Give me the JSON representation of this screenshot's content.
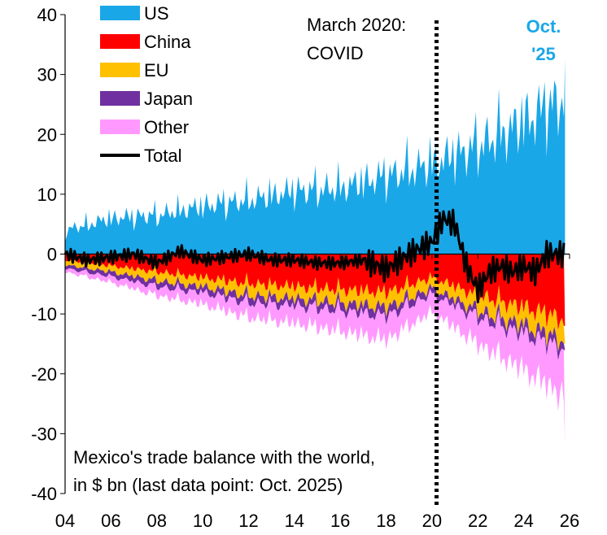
{
  "chart_data": {
    "type": "area",
    "caption_lines": [
      "Mexico's trade balance with the world,",
      "in $ bn (last data point: Oct. 2025)"
    ],
    "x_ticks": [
      "04",
      "06",
      "08",
      "10",
      "12",
      "14",
      "16",
      "18",
      "20",
      "22",
      "24",
      "26"
    ],
    "x_range": [
      2004,
      2026
    ],
    "y_ticks": [
      "-40",
      "-30",
      "-20",
      "-10",
      "0",
      "10",
      "20",
      "30",
      "40"
    ],
    "ylim": [
      -40,
      40
    ],
    "grid": false,
    "legend_position": "top-left",
    "series": [
      {
        "name": "US",
        "color": "#1aa7e8",
        "kind": "stacked-area",
        "x": [
          2004,
          2006,
          2008,
          2010,
          2012,
          2014,
          2016,
          2018,
          2020,
          2022,
          2024,
          2025.8
        ],
        "values": [
          4,
          6,
          6.5,
          8,
          9,
          10.5,
          11,
          13,
          15,
          18,
          22,
          26
        ]
      },
      {
        "name": "China",
        "color": "#ff0000",
        "kind": "stacked-area",
        "x": [
          2004,
          2006,
          2008,
          2010,
          2012,
          2014,
          2016,
          2018,
          2020,
          2022,
          2024,
          2025.8
        ],
        "values": [
          -1,
          -2,
          -3,
          -4,
          -5,
          -5.5,
          -6,
          -6.5,
          -4,
          -7,
          -9,
          -11
        ]
      },
      {
        "name": "EU",
        "color": "#ffc000",
        "kind": "stacked-area",
        "x": [
          2004,
          2006,
          2008,
          2010,
          2012,
          2014,
          2016,
          2018,
          2020,
          2022,
          2024,
          2025.8
        ],
        "values": [
          -0.8,
          -1,
          -1.5,
          -1.5,
          -2,
          -2,
          -2.2,
          -2.5,
          -1.8,
          -2.5,
          -3,
          -3.5
        ]
      },
      {
        "name": "Japan",
        "color": "#7030a0",
        "kind": "stacked-area",
        "x": [
          2004,
          2006,
          2008,
          2010,
          2012,
          2014,
          2016,
          2018,
          2020,
          2022,
          2024,
          2025.8
        ],
        "values": [
          -0.6,
          -0.8,
          -1,
          -1,
          -1.2,
          -1.2,
          -1.3,
          -1.5,
          -1,
          -1.2,
          -1.5,
          -1.5
        ]
      },
      {
        "name": "Other",
        "color": "#ff99ff",
        "kind": "stacked-area",
        "x": [
          2004,
          2006,
          2008,
          2010,
          2012,
          2014,
          2016,
          2018,
          2020,
          2022,
          2024,
          2025.8
        ],
        "values": [
          -0.6,
          -1,
          -1.5,
          -2,
          -2.5,
          -3,
          -3.5,
          -4,
          -3,
          -4.5,
          -6,
          -8
        ]
      },
      {
        "name": "Total",
        "color": "#000000",
        "kind": "line",
        "x": [
          2004,
          2005,
          2006,
          2007,
          2008,
          2009,
          2010,
          2011,
          2012,
          2013,
          2014,
          2015,
          2016,
          2017,
          2018,
          2019,
          2020,
          2020.5,
          2021,
          2021.5,
          2022,
          2022.5,
          2023,
          2023.5,
          2024,
          2024.5,
          2025,
          2025.8
        ],
        "values": [
          0,
          -1,
          -0.5,
          0,
          -1.5,
          0.5,
          -1,
          -0.5,
          0,
          -1,
          -1,
          -1.5,
          -1.5,
          -1,
          -2.5,
          0,
          2,
          6,
          5,
          -2,
          -6,
          -3,
          -2,
          -3,
          -2,
          -3,
          0,
          0
        ]
      }
    ],
    "annotations": {
      "covid_x": 2020.2,
      "covid_lines": [
        "March 2020:",
        "COVID"
      ],
      "last_lines": [
        "Oct.",
        "'25"
      ],
      "last_color": "#1aa7e8",
      "last_spike_value": 32.5,
      "last_spike_low": -32
    }
  }
}
